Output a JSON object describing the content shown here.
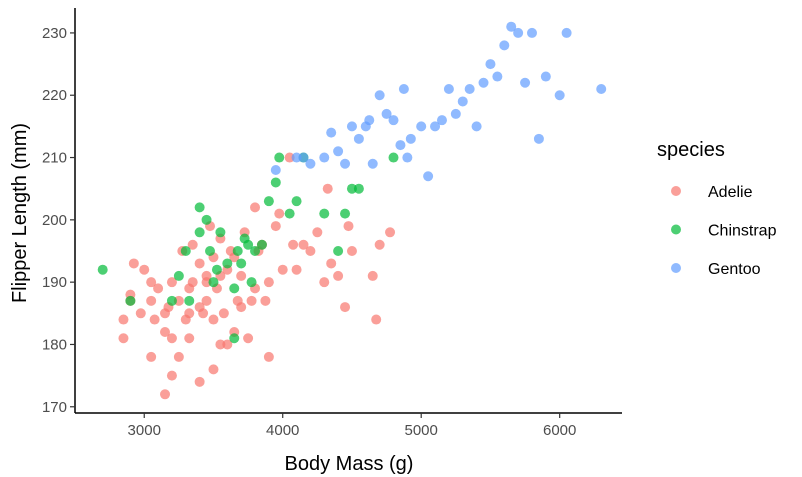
{
  "chart_data": {
    "type": "scatter",
    "title": "",
    "xlabel": "Body Mass (g)",
    "ylabel": "Flipper Length (mm)",
    "xlim": [
      2500,
      6450
    ],
    "ylim": [
      169,
      234
    ],
    "x_ticks": [
      3000,
      4000,
      5000,
      6000
    ],
    "y_ticks": [
      170,
      180,
      190,
      200,
      210,
      220,
      230
    ],
    "grid": false,
    "legend": {
      "title": "species",
      "placement": "right"
    },
    "series": [
      {
        "name": "Adelie",
        "color": "#F8766D",
        "points": [
          [
            2850,
            184
          ],
          [
            2850,
            181
          ],
          [
            2900,
            188
          ],
          [
            2900,
            187
          ],
          [
            2925,
            193
          ],
          [
            2975,
            185
          ],
          [
            3000,
            192
          ],
          [
            3050,
            190
          ],
          [
            3050,
            187
          ],
          [
            3050,
            178
          ],
          [
            3075,
            184
          ],
          [
            3100,
            189
          ],
          [
            3150,
            172
          ],
          [
            3150,
            185
          ],
          [
            3150,
            182
          ],
          [
            3175,
            186
          ],
          [
            3200,
            181
          ],
          [
            3200,
            190
          ],
          [
            3200,
            175
          ],
          [
            3250,
            178
          ],
          [
            3250,
            187
          ],
          [
            3275,
            195
          ],
          [
            3300,
            184
          ],
          [
            3325,
            189
          ],
          [
            3325,
            181
          ],
          [
            3325,
            185
          ],
          [
            3350,
            196
          ],
          [
            3350,
            190
          ],
          [
            3400,
            186
          ],
          [
            3400,
            174
          ],
          [
            3400,
            193
          ],
          [
            3425,
            185
          ],
          [
            3450,
            191
          ],
          [
            3450,
            187
          ],
          [
            3450,
            190
          ],
          [
            3475,
            199
          ],
          [
            3500,
            184
          ],
          [
            3500,
            194
          ],
          [
            3500,
            176
          ],
          [
            3525,
            189
          ],
          [
            3550,
            180
          ],
          [
            3550,
            191
          ],
          [
            3550,
            197
          ],
          [
            3575,
            185
          ],
          [
            3600,
            192
          ],
          [
            3600,
            180
          ],
          [
            3625,
            195
          ],
          [
            3650,
            194
          ],
          [
            3650,
            182
          ],
          [
            3675,
            187
          ],
          [
            3700,
            191
          ],
          [
            3700,
            186
          ],
          [
            3725,
            198
          ],
          [
            3750,
            181
          ],
          [
            3775,
            187
          ],
          [
            3800,
            202
          ],
          [
            3800,
            189
          ],
          [
            3825,
            195
          ],
          [
            3850,
            196
          ],
          [
            3875,
            187
          ],
          [
            3900,
            178
          ],
          [
            3900,
            190
          ],
          [
            3950,
            199
          ],
          [
            3975,
            201
          ],
          [
            4000,
            192
          ],
          [
            4050,
            210
          ],
          [
            4075,
            196
          ],
          [
            4100,
            192
          ],
          [
            4150,
            196
          ],
          [
            4200,
            195
          ],
          [
            4250,
            198
          ],
          [
            4300,
            190
          ],
          [
            4325,
            205
          ],
          [
            4350,
            193
          ],
          [
            4400,
            191
          ],
          [
            4450,
            186
          ],
          [
            4475,
            199
          ],
          [
            4500,
            195
          ],
          [
            4650,
            191
          ],
          [
            4675,
            184
          ],
          [
            4700,
            196
          ],
          [
            4775,
            198
          ]
        ]
      },
      {
        "name": "Chinstrap",
        "color": "#00BA38",
        "points": [
          [
            2700,
            192
          ],
          [
            2900,
            187
          ],
          [
            3200,
            187
          ],
          [
            3250,
            191
          ],
          [
            3300,
            195
          ],
          [
            3325,
            187
          ],
          [
            3400,
            202
          ],
          [
            3400,
            198
          ],
          [
            3450,
            200
          ],
          [
            3475,
            195
          ],
          [
            3500,
            190
          ],
          [
            3525,
            192
          ],
          [
            3550,
            198
          ],
          [
            3600,
            193
          ],
          [
            3650,
            181
          ],
          [
            3650,
            189
          ],
          [
            3675,
            195
          ],
          [
            3700,
            193
          ],
          [
            3725,
            197
          ],
          [
            3750,
            196
          ],
          [
            3775,
            190
          ],
          [
            3800,
            195
          ],
          [
            3850,
            196
          ],
          [
            3900,
            203
          ],
          [
            3950,
            206
          ],
          [
            3975,
            210
          ],
          [
            4050,
            201
          ],
          [
            4100,
            203
          ],
          [
            4150,
            210
          ],
          [
            4300,
            201
          ],
          [
            4400,
            195
          ],
          [
            4450,
            201
          ],
          [
            4500,
            205
          ],
          [
            4550,
            205
          ],
          [
            4800,
            210
          ]
        ]
      },
      {
        "name": "Gentoo",
        "color": "#619CFF",
        "points": [
          [
            3950,
            208
          ],
          [
            4100,
            210
          ],
          [
            4150,
            210
          ],
          [
            4200,
            209
          ],
          [
            4300,
            210
          ],
          [
            4350,
            214
          ],
          [
            4400,
            211
          ],
          [
            4450,
            209
          ],
          [
            4500,
            215
          ],
          [
            4550,
            213
          ],
          [
            4600,
            215
          ],
          [
            4625,
            216
          ],
          [
            4650,
            209
          ],
          [
            4700,
            220
          ],
          [
            4750,
            217
          ],
          [
            4800,
            216
          ],
          [
            4850,
            212
          ],
          [
            4875,
            221
          ],
          [
            4900,
            210
          ],
          [
            4925,
            213
          ],
          [
            5000,
            215
          ],
          [
            5050,
            207
          ],
          [
            5100,
            215
          ],
          [
            5150,
            216
          ],
          [
            5200,
            221
          ],
          [
            5250,
            217
          ],
          [
            5300,
            219
          ],
          [
            5350,
            221
          ],
          [
            5400,
            215
          ],
          [
            5450,
            222
          ],
          [
            5500,
            225
          ],
          [
            5550,
            223
          ],
          [
            5600,
            228
          ],
          [
            5650,
            231
          ],
          [
            5700,
            230
          ],
          [
            5750,
            222
          ],
          [
            5800,
            230
          ],
          [
            5850,
            213
          ],
          [
            5900,
            223
          ],
          [
            6000,
            220
          ],
          [
            6050,
            230
          ],
          [
            6300,
            221
          ]
        ]
      }
    ]
  }
}
